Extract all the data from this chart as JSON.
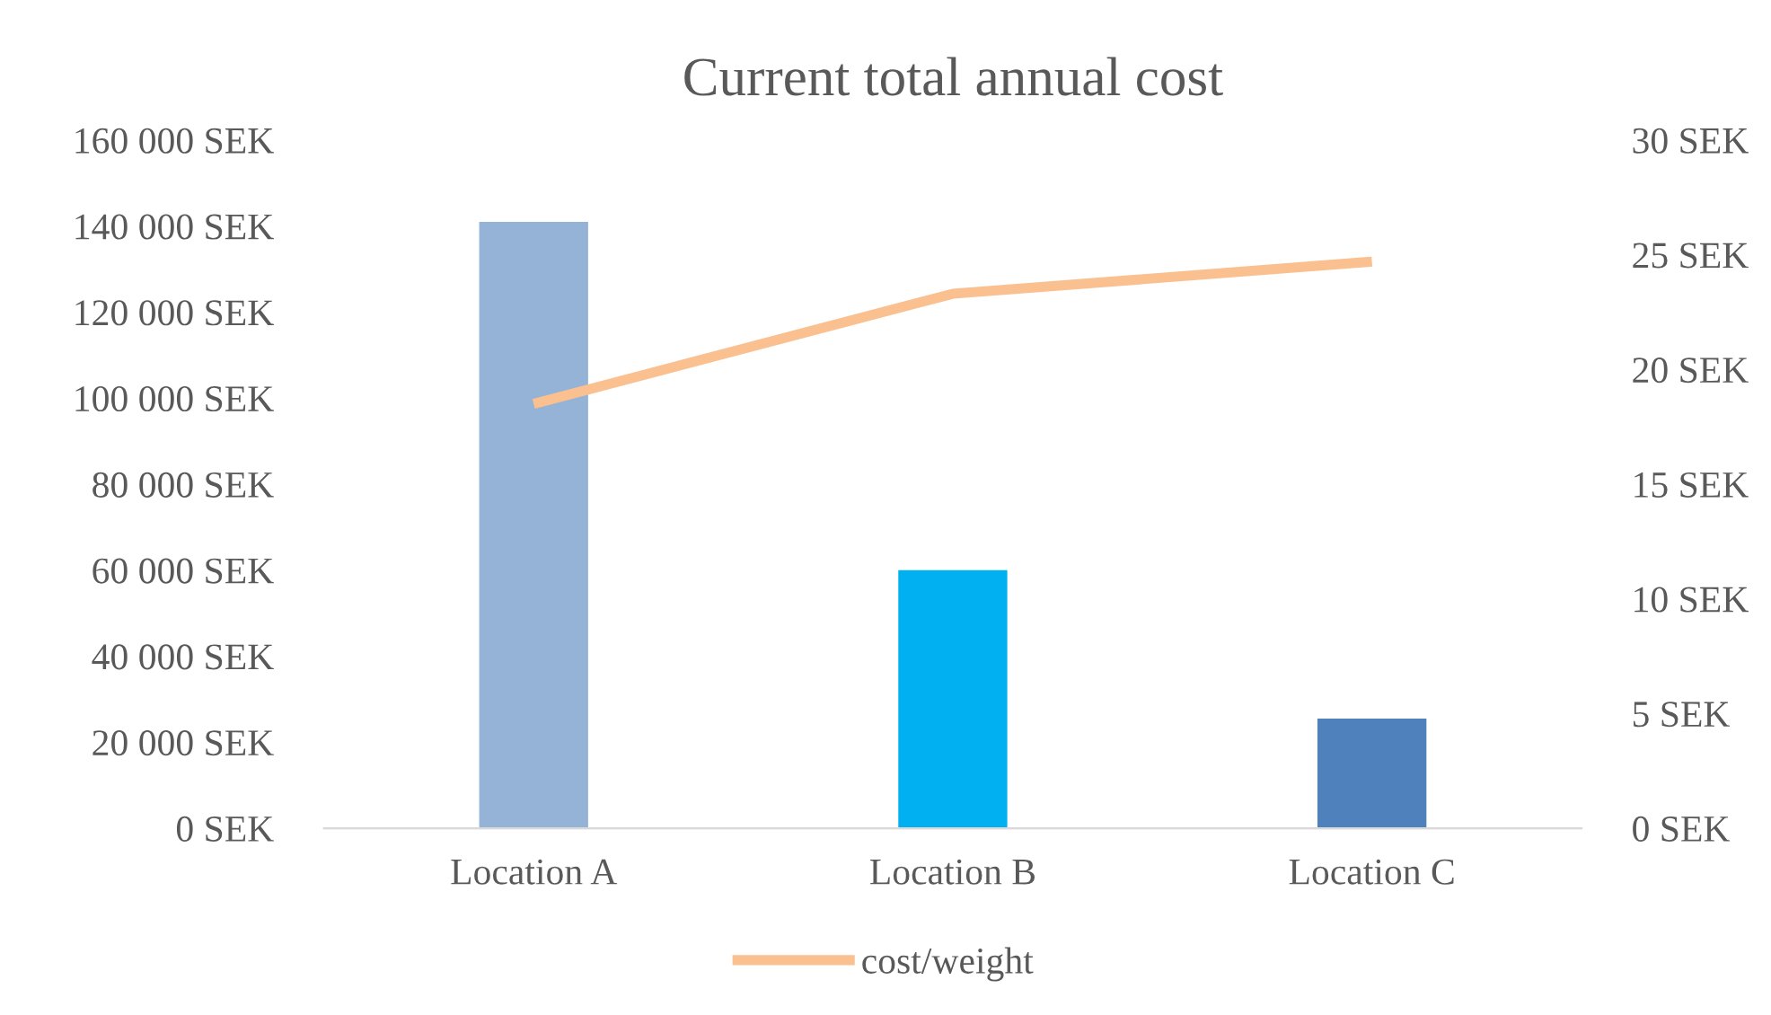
{
  "chart_data": {
    "type": "bar",
    "title": "Current total annual cost",
    "categories": [
      "Location A",
      "Location B",
      "Location C"
    ],
    "series": [
      {
        "colors": [
          "#95b3d7",
          "#00b0f0",
          "#4f81bd"
        ],
        "values": [
          141000,
          60000,
          25500
        ]
      },
      {
        "type": "line",
        "name": "cost/weight",
        "color": "#fac090",
        "axis": "y2",
        "values": [
          18.5,
          23.3,
          24.7
        ]
      }
    ],
    "ylim": [
      0,
      160000
    ],
    "yticks": [
      {
        "value": 0,
        "label": "0 SEK"
      },
      {
        "value": 20000,
        "label": "20 000 SEK"
      },
      {
        "value": 40000,
        "label": "40 000 SEK"
      },
      {
        "value": 60000,
        "label": "60 000 SEK"
      },
      {
        "value": 80000,
        "label": "80 000 SEK"
      },
      {
        "value": 100000,
        "label": "100 000 SEK"
      },
      {
        "value": 120000,
        "label": "120 000 SEK"
      },
      {
        "value": 140000,
        "label": "140 000 SEK"
      },
      {
        "value": 160000,
        "label": "160 000 SEK"
      }
    ],
    "y2lim": [
      0,
      30
    ],
    "y2ticks": [
      {
        "value": 0,
        "label": "0 SEK"
      },
      {
        "value": 5,
        "label": "5 SEK"
      },
      {
        "value": 10,
        "label": "10 SEK"
      },
      {
        "value": 15,
        "label": "15 SEK"
      },
      {
        "value": 20,
        "label": "20 SEK"
      },
      {
        "value": 25,
        "label": "25 SEK"
      },
      {
        "value": 30,
        "label": "30 SEK"
      }
    ],
    "grid": false,
    "legend": "bottom",
    "marker": "none",
    "line_style": "solid"
  }
}
